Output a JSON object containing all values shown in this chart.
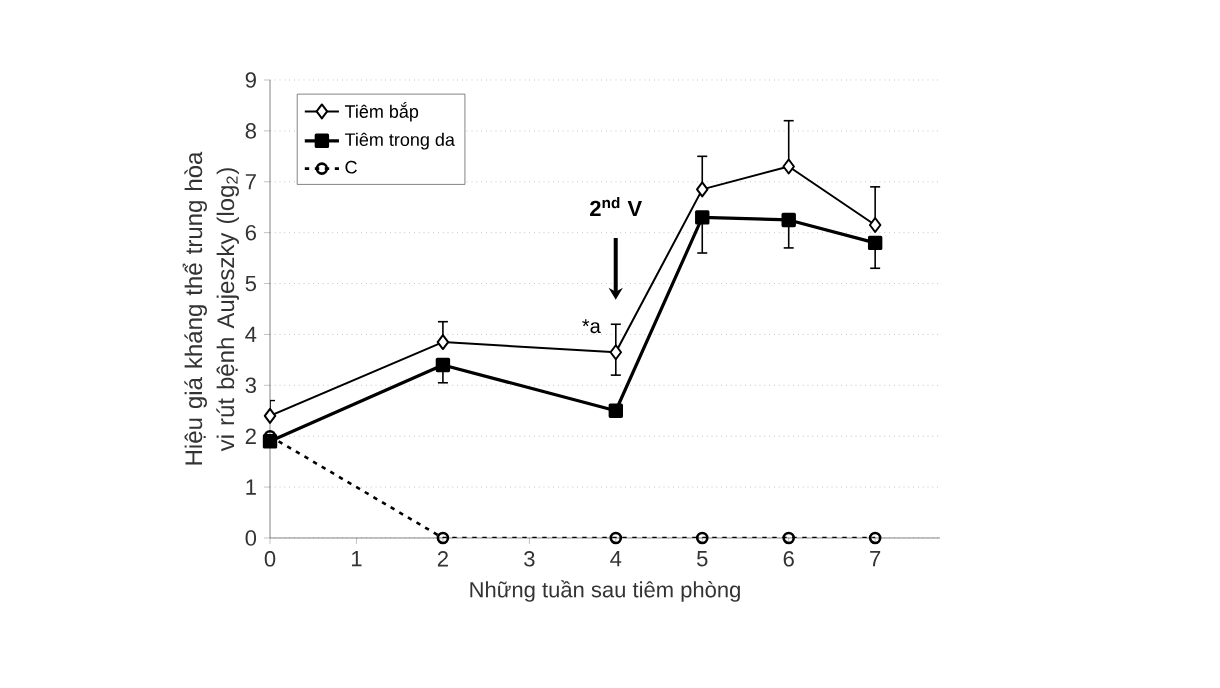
{
  "chart_data": {
    "type": "line",
    "xlabel": "Những tuần sau tiêm phòng",
    "ylabel": "Hiệu giá kháng thể trung hòa vi rút bệnh Aujeszky (log$_{2}$)",
    "x": [
      0,
      2,
      4,
      5,
      6,
      7
    ],
    "xlim": [
      0,
      7.75
    ],
    "xticks": [
      0,
      1,
      2,
      3,
      4,
      5,
      6,
      7
    ],
    "ylim": [
      0,
      9
    ],
    "yticks": [
      0,
      1,
      2,
      3,
      4,
      5,
      6,
      7,
      8,
      9
    ],
    "grid": "y",
    "legend": "top left",
    "series": [
      {
        "name": "Tiêm bắp",
        "color": "#000000",
        "marker": "diamond",
        "line_style": "solid",
        "values": [
          2.4,
          3.85,
          3.65,
          6.85,
          7.3,
          6.15
        ],
        "errors": [
          [
            2.4,
            2.7
          ],
          [
            3.85,
            4.25
          ],
          [
            3.2,
            4.2
          ],
          [
            6.85,
            7.5
          ],
          [
            7.3,
            8.2
          ],
          [
            6.15,
            6.9
          ]
        ]
      },
      {
        "name": "Tiêm trong da",
        "color": "#000000",
        "marker": "square",
        "line_style": "solid",
        "values": [
          1.9,
          3.4,
          2.5,
          6.3,
          6.25,
          5.8
        ],
        "errors": [
          null,
          [
            3.05,
            3.4
          ],
          null,
          [
            5.6,
            6.3
          ],
          [
            5.7,
            6.25
          ],
          [
            5.3,
            5.8
          ]
        ]
      },
      {
        "name": "C",
        "color": "#000000",
        "marker": "circle",
        "line_style": "dashed",
        "values": [
          2.0,
          0,
          0,
          0,
          0,
          0
        ]
      }
    ],
    "annotations": [
      "2$^{nd}$ V",
      {
        "text": "*a",
        "x": 4,
        "y": 3.65
      }
    ]
  }
}
